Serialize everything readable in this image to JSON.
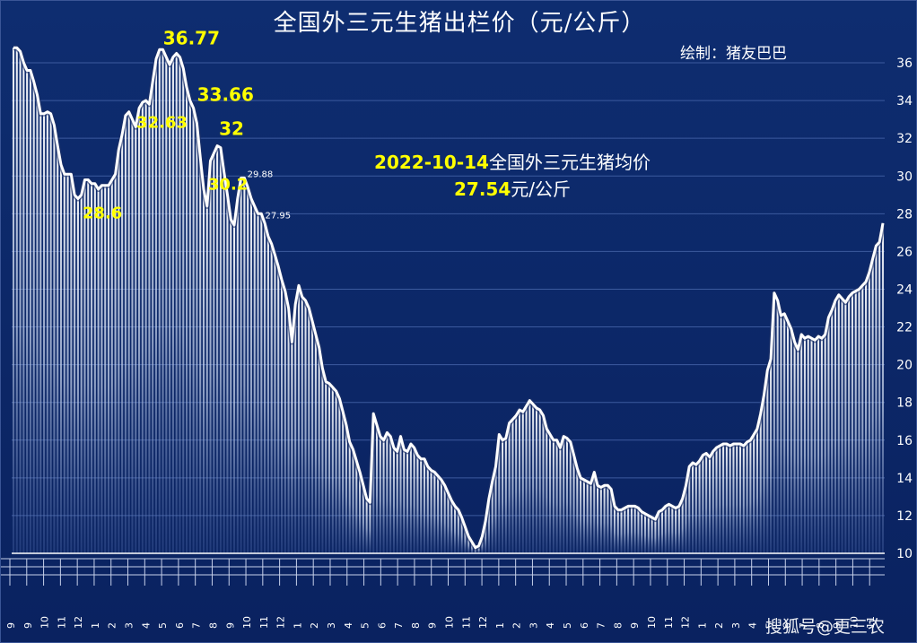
{
  "chart_data": {
    "type": "area",
    "title": "全国外三元生猪出栏价（元/公斤）",
    "credit": "绘制：猪友巴巴",
    "note": {
      "date": "2022-10-14",
      "text": "全国外三元生猪均价",
      "price": "27.54",
      "unit": "元/公斤"
    },
    "ylim": [
      10,
      37
    ],
    "yticks": [
      10,
      12,
      14,
      16,
      18,
      20,
      22,
      24,
      26,
      28,
      30,
      32,
      34,
      36
    ],
    "annotations": [
      {
        "label": "36.77",
        "color": "yellow"
      },
      {
        "label": "33.66",
        "color": "yellow"
      },
      {
        "label": "32.63",
        "color": "yellow"
      },
      {
        "label": "32",
        "color": "yellow"
      },
      {
        "label": "30.2",
        "color": "yellow"
      },
      {
        "label": "28.6",
        "color": "yellow"
      },
      {
        "label": "29.88",
        "color": "white"
      },
      {
        "label": "27.95",
        "color": "white"
      }
    ],
    "values": [
      36.8,
      36.8,
      36.6,
      36.0,
      35.6,
      35.6,
      35.0,
      34.3,
      33.3,
      33.3,
      33.4,
      33.3,
      32.7,
      31.6,
      30.6,
      30.1,
      30.1,
      30.1,
      29.0,
      28.8,
      29.0,
      29.8,
      29.8,
      29.6,
      29.6,
      29.3,
      29.5,
      29.5,
      29.5,
      29.8,
      30.1,
      31.4,
      32.2,
      33.2,
      33.4,
      33.0,
      32.6,
      33.6,
      33.9,
      34.0,
      33.8,
      35.0,
      36.2,
      36.7,
      36.7,
      36.3,
      35.9,
      36.3,
      36.5,
      36.3,
      35.7,
      34.7,
      34.0,
      33.6,
      32.8,
      31.0,
      29.3,
      28.4,
      30.8,
      31.2,
      31.6,
      31.5,
      30.2,
      29.0,
      27.7,
      27.4,
      28.8,
      29.9,
      29.9,
      29.4,
      28.8,
      28.4,
      28.0,
      28.0,
      27.5,
      26.8,
      26.4,
      25.8,
      25.2,
      24.5,
      23.9,
      23.0,
      21.2,
      23.2,
      24.2,
      23.6,
      23.4,
      23.0,
      22.3,
      21.6,
      20.9,
      19.8,
      19.1,
      19.0,
      18.8,
      18.6,
      18.2,
      17.5,
      16.8,
      15.9,
      15.5,
      14.9,
      14.3,
      13.6,
      12.9,
      12.7,
      17.4,
      16.8,
      16.2,
      16.0,
      16.4,
      16.2,
      15.6,
      15.4,
      16.2,
      15.5,
      15.4,
      15.8,
      15.6,
      15.2,
      15.0,
      15.0,
      14.6,
      14.4,
      14.3,
      14.1,
      13.9,
      13.6,
      13.2,
      12.8,
      12.5,
      12.3,
      11.9,
      11.4,
      10.9,
      10.6,
      10.3,
      10.4,
      10.9,
      11.7,
      12.9,
      13.8,
      14.6,
      16.3,
      16.0,
      16.1,
      16.9,
      17.1,
      17.3,
      17.6,
      17.5,
      17.8,
      18.1,
      17.9,
      17.7,
      17.6,
      17.3,
      16.6,
      16.3,
      16.0,
      16.0,
      15.6,
      16.2,
      16.1,
      15.9,
      15.2,
      14.5,
      14.0,
      13.9,
      13.8,
      13.7,
      14.3,
      13.6,
      13.5,
      13.6,
      13.6,
      13.4,
      12.5,
      12.3,
      12.3,
      12.4,
      12.5,
      12.5,
      12.5,
      12.4,
      12.2,
      12.1,
      12.0,
      11.9,
      11.8,
      12.2,
      12.3,
      12.5,
      12.6,
      12.5,
      12.4,
      12.5,
      12.9,
      13.6,
      14.6,
      14.8,
      14.7,
      14.9,
      15.2,
      15.3,
      15.1,
      15.4,
      15.6,
      15.7,
      15.8,
      15.8,
      15.7,
      15.8,
      15.8,
      15.8,
      15.7,
      15.9,
      16.0,
      16.3,
      16.6,
      17.4,
      18.4,
      19.7,
      20.3,
      23.8,
      23.4,
      22.6,
      22.7,
      22.3,
      21.9,
      21.2,
      20.8,
      21.6,
      21.4,
      21.5,
      21.4,
      21.3,
      21.5,
      21.4,
      21.6,
      22.5,
      22.9,
      23.4,
      23.7,
      23.5,
      23.3,
      23.6,
      23.8,
      23.9,
      24.0,
      24.2,
      24.4,
      24.9,
      25.6,
      26.3,
      26.5,
      27.5
    ],
    "x_tick_labels": [
      "9",
      "9",
      "10",
      "11",
      "12",
      "1",
      "2",
      "3",
      "4",
      "5",
      "6",
      "7",
      "8",
      "9",
      "10",
      "11",
      "12",
      "1",
      "2",
      "3",
      "4",
      "5",
      "6",
      "7",
      "8",
      "9",
      "10",
      "11",
      "12",
      "1",
      "2",
      "3",
      "4",
      "5",
      "6",
      "7",
      "8",
      "9",
      "10",
      "11",
      "12",
      "1",
      "2",
      "3",
      "4",
      "5",
      "6",
      "7",
      "8",
      "9",
      "10",
      "11"
    ]
  },
  "watermark": "搜狐号@更三农"
}
